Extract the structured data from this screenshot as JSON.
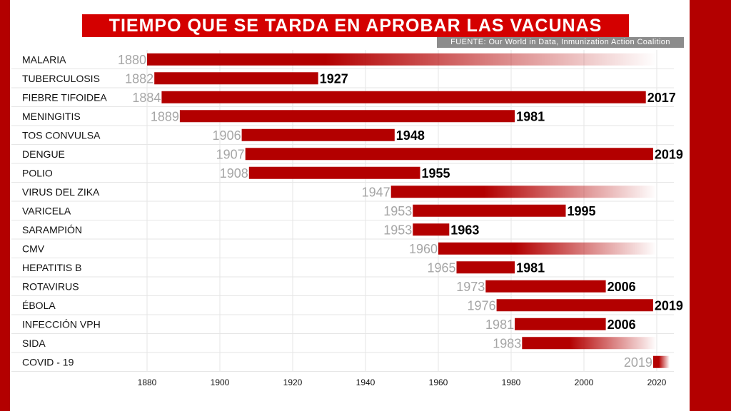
{
  "header": {
    "title": "TIEMPO QUE SE TARDA EN APROBAR LAS VACUNAS",
    "source": "FUENTE: Our World in Data, Inmunization Action Coalition"
  },
  "colors": {
    "bar": "#b30000",
    "title_bg": "#d40000",
    "frame": "#b30000",
    "start_label": "#a6a6a6",
    "end_label": "#000000",
    "grid": "#e6e6e6"
  },
  "chart_data": {
    "type": "bar",
    "orientation": "horizontal-range",
    "xlim": [
      1872,
      2026
    ],
    "xticks": [
      1880,
      1900,
      1920,
      1940,
      1960,
      1980,
      2000,
      2020
    ],
    "grid": true,
    "note_open_bars": "bars without an end year fade out toward 2020 (no approved vaccine)",
    "rows": [
      {
        "category": "MALARIA",
        "start": 1880,
        "end": null,
        "start_label": "1880",
        "end_label": ""
      },
      {
        "category": "TUBERCULOSIS",
        "start": 1882,
        "end": 1927,
        "start_label": "1882",
        "end_label": "1927"
      },
      {
        "category": "FIEBRE TIFOIDEA",
        "start": 1884,
        "end": 2017,
        "start_label": "1884",
        "end_label": "2017"
      },
      {
        "category": "MENINGITIS",
        "start": 1889,
        "end": 1981,
        "start_label": "1889",
        "end_label": "1981"
      },
      {
        "category": "TOS CONVULSA",
        "start": 1906,
        "end": 1948,
        "start_label": "1906",
        "end_label": "1948"
      },
      {
        "category": "DENGUE",
        "start": 1907,
        "end": 2019,
        "start_label": "1907",
        "end_label": "2019"
      },
      {
        "category": "POLIO",
        "start": 1908,
        "end": 1955,
        "start_label": "1908",
        "end_label": "1955"
      },
      {
        "category": "VIRUS DEL ZIKA",
        "start": 1947,
        "end": null,
        "start_label": "1947",
        "end_label": ""
      },
      {
        "category": "VARICELA",
        "start": 1953,
        "end": 1995,
        "start_label": "1953",
        "end_label": "1995"
      },
      {
        "category": "SARAMPIÓN",
        "start": 1953,
        "end": 1963,
        "start_label": "1953",
        "end_label": "1963"
      },
      {
        "category": "CMV",
        "start": 1960,
        "end": null,
        "start_label": "1960",
        "end_label": ""
      },
      {
        "category": "HEPATITIS B",
        "start": 1965,
        "end": 1981,
        "start_label": "1965",
        "end_label": "1981"
      },
      {
        "category": "ROTAVIRUS",
        "start": 1973,
        "end": 2006,
        "start_label": "1973",
        "end_label": "2006"
      },
      {
        "category": "ÉBOLA",
        "start": 1976,
        "end": 2019,
        "start_label": "1976",
        "end_label": "2019"
      },
      {
        "category": "INFECCIÓN VPH",
        "start": 1981,
        "end": 2006,
        "start_label": "1981",
        "end_label": "2006"
      },
      {
        "category": "SIDA",
        "start": 1983,
        "end": null,
        "start_label": "1983",
        "end_label": ""
      },
      {
        "category": "COVID - 19",
        "start": 2019,
        "end": null,
        "start_label": "2019",
        "end_label": ""
      }
    ]
  }
}
